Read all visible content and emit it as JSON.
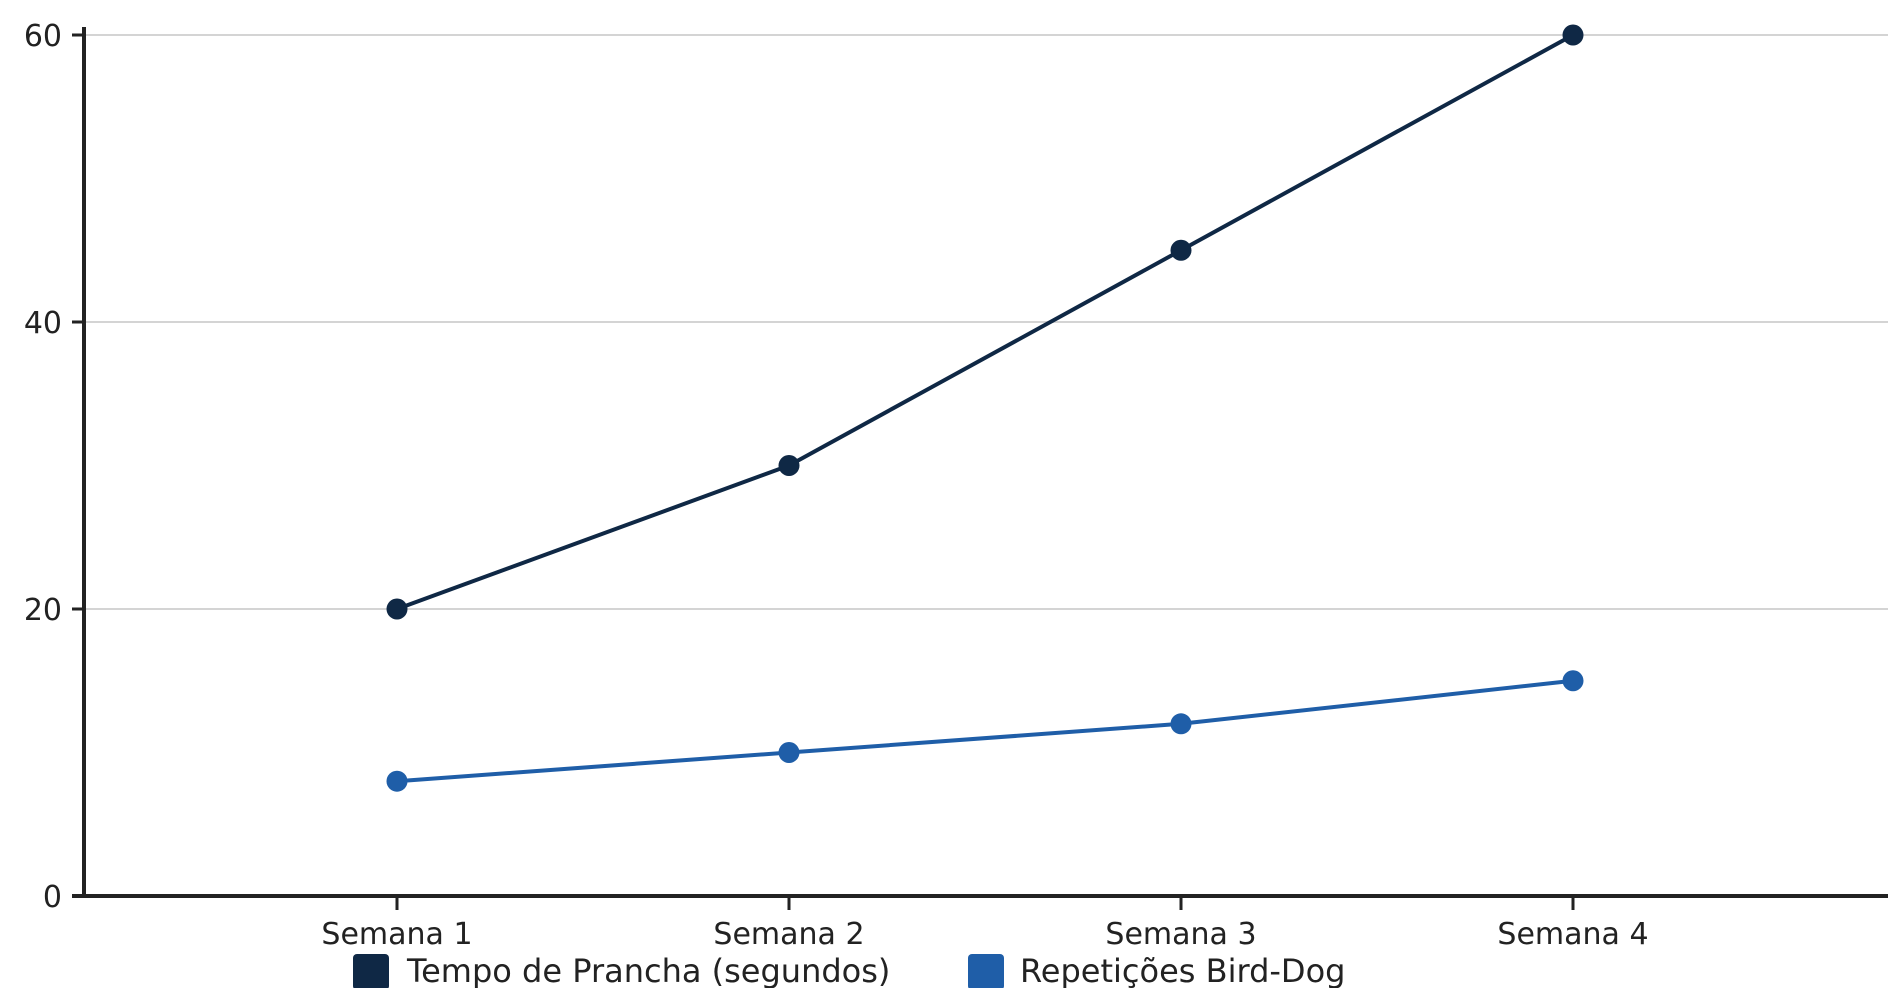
{
  "chart_data": {
    "type": "line",
    "categories": [
      "Semana 1",
      "Semana 2",
      "Semana 3",
      "Semana 4"
    ],
    "series": [
      {
        "name": "Tempo de Prancha (segundos)",
        "values": [
          20,
          30,
          45,
          60
        ],
        "color": "#0f2845"
      },
      {
        "name": "Repetições Bird-Dog",
        "values": [
          8,
          10,
          12,
          15
        ],
        "color": "#1f5ea8"
      }
    ],
    "ylim": [
      0,
      60
    ],
    "yticks": [
      0,
      20,
      40,
      60
    ],
    "grid": true,
    "legend_position": "bottom",
    "title": "",
    "xlabel": "",
    "ylabel": ""
  }
}
